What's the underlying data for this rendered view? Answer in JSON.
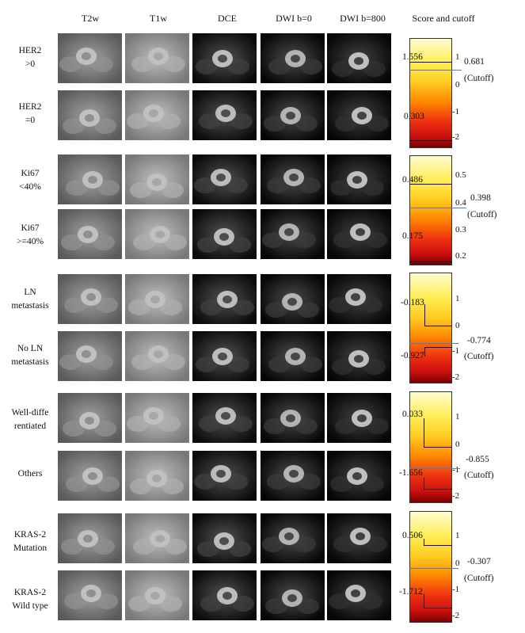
{
  "headers": [
    "T2w",
    "T1w",
    "DCE",
    "DWI b=0",
    "DWI b=800",
    "Score and cutoff"
  ],
  "row_labels": [
    "HER2\n>0",
    "HER2\n=0",
    "Ki67\n<40%",
    "Ki67\n>=40%",
    "LN\nmetastasis",
    "No LN\nmetastasis",
    "Well-diffe\nrentiated",
    "Others",
    "KRAS-2\nMutation",
    "KRAS-2\nWild type"
  ],
  "panels": [
    {
      "name": "her2",
      "ticks": [
        "1",
        "0",
        "-1",
        "-2"
      ],
      "score_high": "1.556",
      "score_low": "0.303",
      "cutoff": "0.681",
      "cutoff_label": "(Cutoff)"
    },
    {
      "name": "ki67",
      "ticks": [
        "0.5",
        "0.4",
        "0.3",
        "0.2"
      ],
      "score_high": "0.486",
      "score_low": "0.175",
      "cutoff": "0.398",
      "cutoff_label": "(Cutoff)"
    },
    {
      "name": "ln",
      "ticks": [
        "1",
        "0",
        "-1",
        "-2"
      ],
      "score_high": "-0.183",
      "score_low": "-0.927",
      "cutoff": "-0.774",
      "cutoff_label": "(Cutoff)"
    },
    {
      "name": "diff",
      "ticks": [
        "1",
        "0",
        "-1",
        "-2"
      ],
      "score_high": "0.033",
      "score_low": "-1.656",
      "cutoff": "-0.855",
      "cutoff_label": "(Cutoff)"
    },
    {
      "name": "kras",
      "ticks": [
        "1",
        "0",
        "-1",
        "-2"
      ],
      "score_high": "0.506",
      "score_low": "-1.712",
      "cutoff": "-0.307",
      "cutoff_label": "(Cutoff)"
    }
  ],
  "colors": {
    "cutoff_line": "#4a7fb8",
    "score_line": "#111111"
  }
}
